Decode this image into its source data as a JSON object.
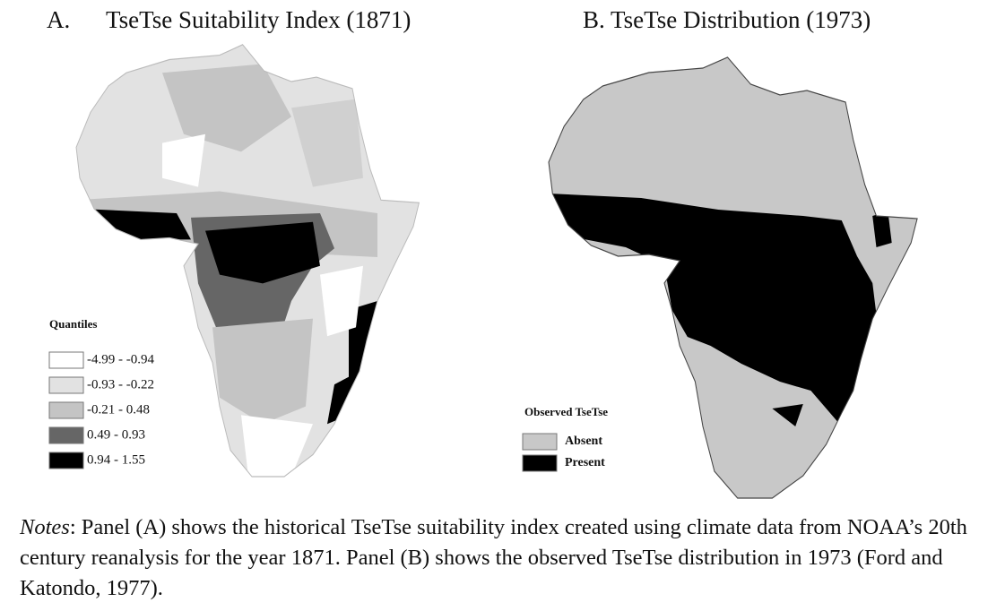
{
  "panel_a": {
    "label": "A.",
    "title": "TseTse Suitability Index (1871)",
    "legend": {
      "title": "Quantiles",
      "items": [
        {
          "label": "-4.99 - -0.94",
          "color": "#ffffff"
        },
        {
          "label": "-0.93 - -0.22",
          "color": "#e2e2e2"
        },
        {
          "label": "-0.21 - 0.48",
          "color": "#c4c4c4"
        },
        {
          "label": "0.49 - 0.93",
          "color": "#666666"
        },
        {
          "label": "0.94 - 1.55",
          "color": "#000000"
        }
      ]
    }
  },
  "panel_b": {
    "title": "B. TseTse Distribution (1973)",
    "legend": {
      "title": "Observed TseTse",
      "items": [
        {
          "label": "Absent",
          "color": "#c8c8c8"
        },
        {
          "label": "Present",
          "color": "#000000"
        }
      ]
    }
  },
  "notes": {
    "label": "Notes",
    "text": ": Panel (A) shows the historical TseTse suitability index created using climate data from NOAA’s 20th century reanalysis for the year 1871. Panel (B) shows the observed TseTse distribution in 1973 (Ford and Katondo, 1977)."
  }
}
